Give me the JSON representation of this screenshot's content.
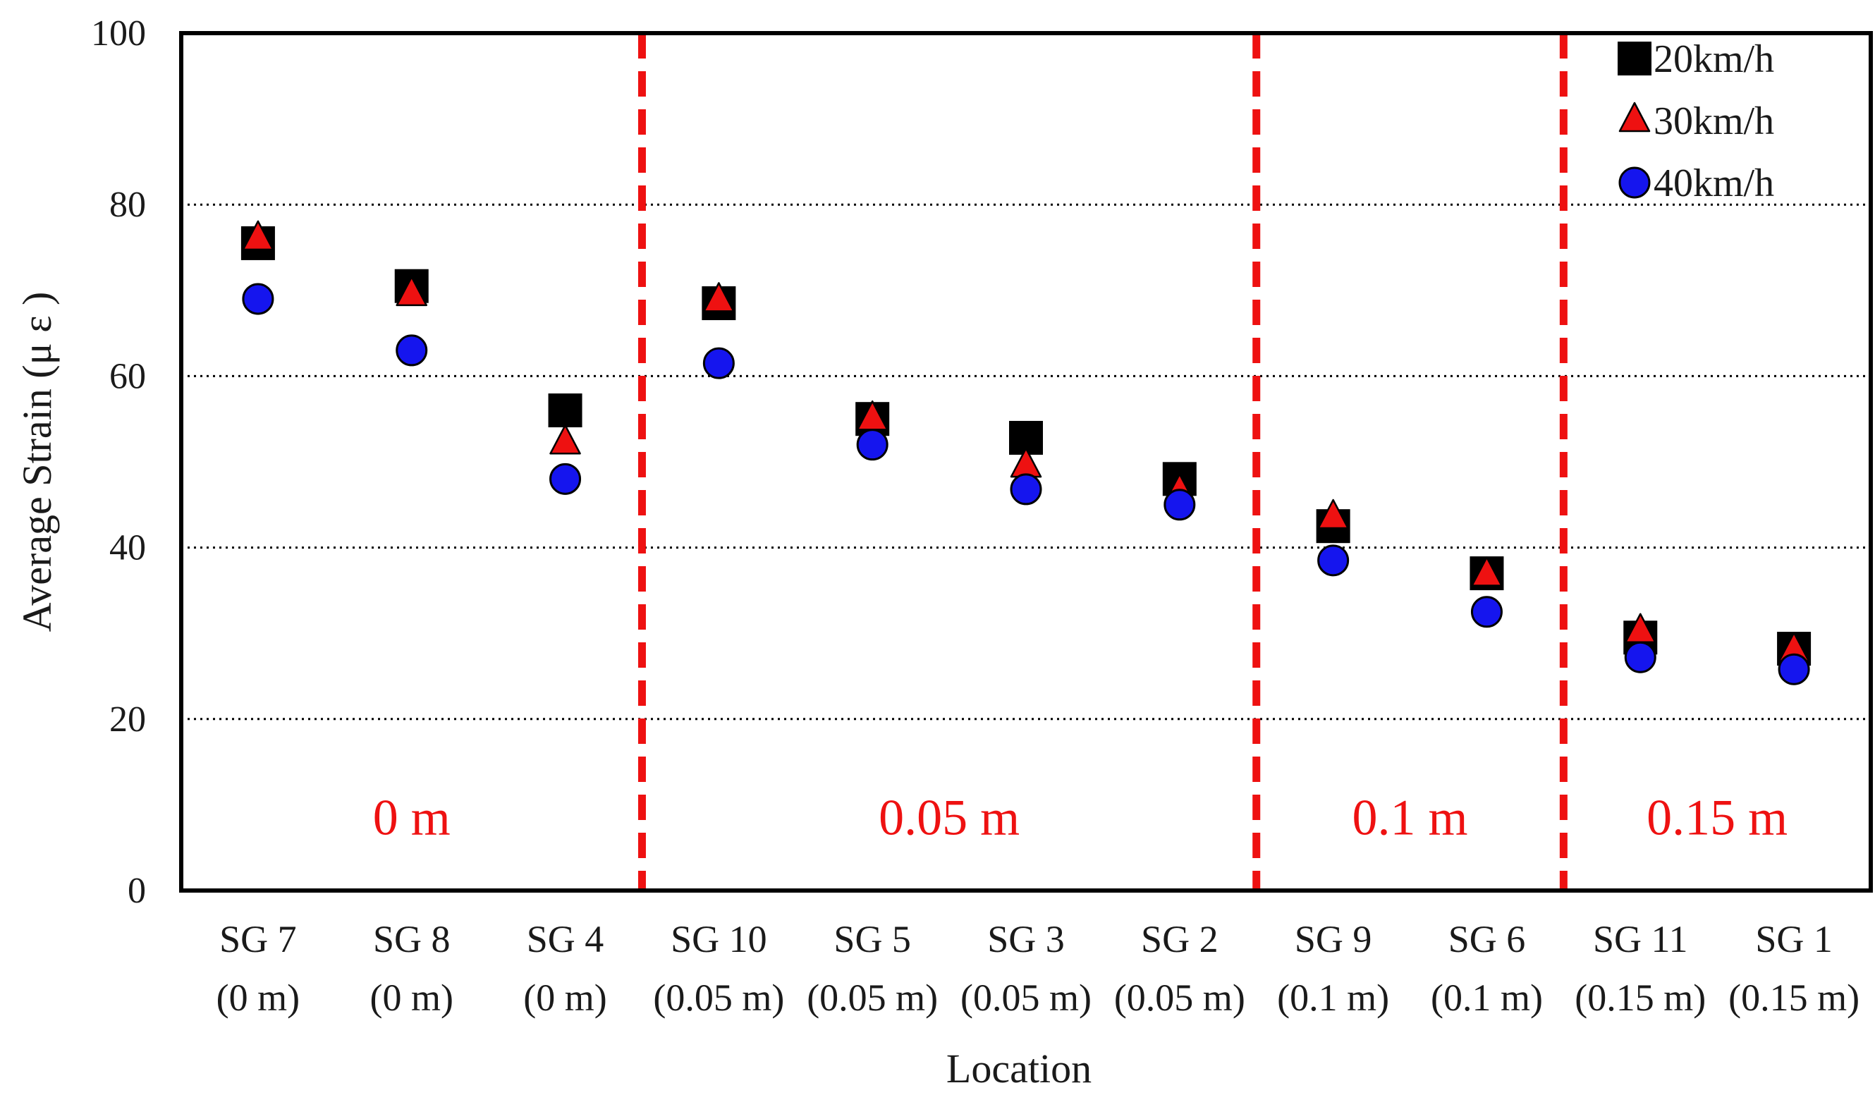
{
  "chart_data": {
    "type": "scatter",
    "title": "",
    "xlabel": "Location",
    "ylabel": "Average Strain (μ ε )",
    "ylim": [
      0,
      100
    ],
    "yticks": [
      0,
      20,
      40,
      60,
      80,
      100
    ],
    "grid": "horizontal dotted at 20, 40, 60, 80",
    "legend_position": "top-right",
    "categories": [
      {
        "name": "SG 7",
        "depth": "(0 m)"
      },
      {
        "name": "SG 8",
        "depth": "(0 m)"
      },
      {
        "name": "SG 4",
        "depth": "(0 m)"
      },
      {
        "name": "SG 10",
        "depth": "(0.05 m)"
      },
      {
        "name": "SG 5",
        "depth": "(0.05 m)"
      },
      {
        "name": "SG 3",
        "depth": "(0.05 m)"
      },
      {
        "name": "SG 2",
        "depth": "(0.05 m)"
      },
      {
        "name": "SG 9",
        "depth": "(0.1 m)"
      },
      {
        "name": "SG 6",
        "depth": "(0.1 m)"
      },
      {
        "name": "SG 11",
        "depth": "(0.15 m)"
      },
      {
        "name": "SG 1",
        "depth": "(0.15 m)"
      }
    ],
    "series": [
      {
        "name": "20km/h",
        "marker": "square",
        "color": "#000000",
        "values": [
          75.5,
          70.5,
          56.0,
          68.5,
          55.0,
          52.8,
          48.0,
          42.5,
          37.0,
          29.5,
          28.2
        ]
      },
      {
        "name": "30km/h",
        "marker": "triangle",
        "color": "#ee1111",
        "values": [
          76.0,
          69.5,
          52.2,
          68.8,
          55.0,
          49.5,
          46.5,
          43.5,
          36.8,
          30.2,
          28.0
        ]
      },
      {
        "name": "40km/h",
        "marker": "circle",
        "color": "#1515ee",
        "values": [
          69.0,
          63.0,
          48.0,
          61.5,
          52.0,
          46.8,
          45.0,
          38.5,
          32.5,
          27.2,
          25.8
        ]
      }
    ],
    "separators": [
      {
        "between": [
          2,
          3
        ],
        "color": "#ee1111"
      },
      {
        "between": [
          6,
          7
        ],
        "color": "#ee1111"
      },
      {
        "between": [
          8,
          9
        ],
        "color": "#ee1111"
      }
    ],
    "regions": [
      {
        "label": "0 m",
        "from": 0,
        "to": 2
      },
      {
        "label": "0.05 m",
        "from": 3,
        "to": 6
      },
      {
        "label": "0.1 m",
        "from": 7,
        "to": 8
      },
      {
        "label": "0.15 m",
        "from": 9,
        "to": 10
      }
    ],
    "region_label_value": 8.5,
    "region_label_color": "#ee1111"
  }
}
